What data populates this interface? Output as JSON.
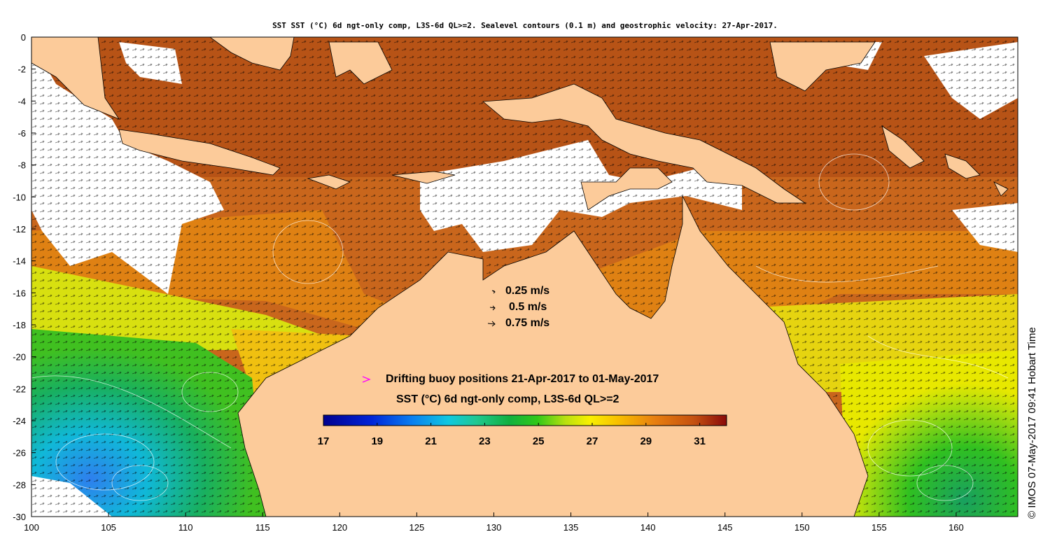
{
  "title": "SST SST (°C) 6d ngt-only comp, L3S-6d QL>=2. Sealevel contours (0.1 m) and geostrophic velocity: 27-Apr-2017.",
  "credit": "© IMOS 07-May-2017 09:41 Hobart Time",
  "map": {
    "lon_range": [
      100,
      164
    ],
    "lat_range": [
      -30,
      0
    ],
    "lon_ticks": [
      100,
      105,
      110,
      115,
      120,
      125,
      130,
      135,
      140,
      145,
      150,
      155,
      160
    ],
    "lat_ticks": [
      0,
      -2,
      -4,
      -6,
      -8,
      -10,
      -12,
      -14,
      -16,
      -18,
      -20,
      -22,
      -24,
      -26,
      -28,
      -30
    ]
  },
  "velocity_legend": [
    {
      "label": "0.25 m/s",
      "speed": 0.25
    },
    {
      "label": "0.5 m/s",
      "speed": 0.5
    },
    {
      "label": "0.75 m/s",
      "speed": 0.75
    }
  ],
  "buoy_legend": {
    "label": "Drifting buoy positions 21-Apr-2017 to 01-May-2017",
    "color": "#ff00ff"
  },
  "colorbar": {
    "title": "SST (°C) 6d ngt-only comp, L3S-6d QL>=2",
    "range": [
      17,
      32
    ],
    "ticks": [
      "17",
      "19",
      "21",
      "23",
      "25",
      "27",
      "29",
      "31"
    ]
  },
  "colors": {
    "land": "#fccb9a",
    "no_data": "#ffffff",
    "warm": "#c4621a",
    "hot": "#a94612"
  }
}
